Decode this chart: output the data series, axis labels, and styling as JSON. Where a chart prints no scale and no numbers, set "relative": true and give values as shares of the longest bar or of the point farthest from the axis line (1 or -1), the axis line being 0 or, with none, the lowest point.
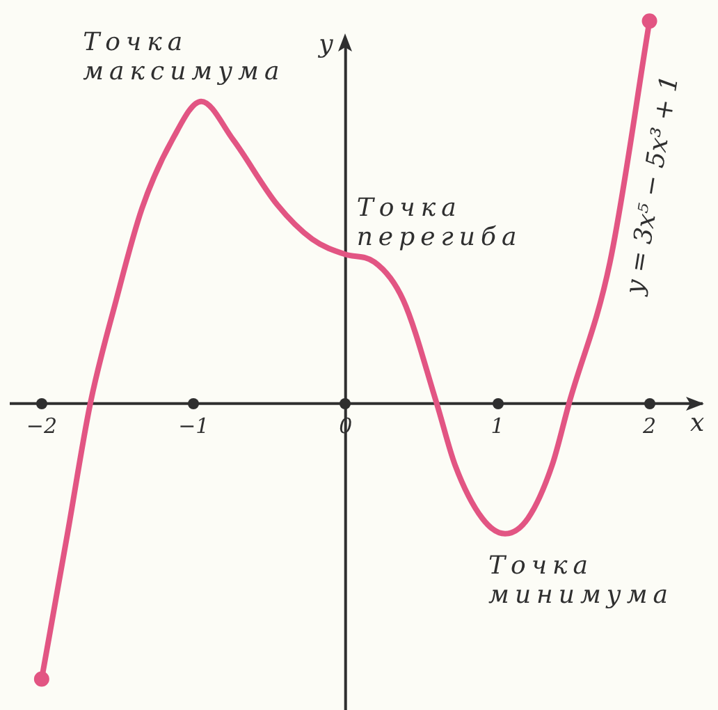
{
  "chart_data": {
    "type": "line",
    "relative": true,
    "xlabel": "x",
    "ylabel": "y",
    "marker": "none",
    "xlim": [
      -2.21,
      2.35
    ],
    "xticks": [
      {
        "value": -2,
        "label": "−2"
      },
      {
        "value": -1,
        "label": "−1"
      },
      0,
      1,
      2
    ],
    "series": [
      {
        "name": "y = 3x⁵ − 5x³ + 1",
        "color": "#e25583",
        "x": [
          -2,
          -1.83,
          -1.68,
          -1.51,
          -1.34,
          -1.14,
          -0.95,
          -0.74,
          -0.45,
          -0.22,
          0,
          0.19,
          0.38,
          0.6,
          0.72,
          0.9,
          1.05,
          1.2,
          1.36,
          1.47,
          1.74,
          2
        ],
        "values": [
          -0.72,
          -0.34,
          0,
          0.27,
          0.51,
          0.69,
          0.79,
          0.69,
          0.52,
          0.43,
          0.39,
          0.37,
          0.27,
          0,
          -0.16,
          -0.3,
          -0.34,
          -0.3,
          -0.16,
          0,
          0.37,
          1
        ]
      },
      {
        "type": "scatter",
        "marker": "circle",
        "color": "#e25583",
        "x": [
          -2,
          2
        ],
        "values": [
          -0.72,
          1
        ]
      }
    ],
    "annotations": [
      {
        "text": "Точка максимума",
        "x": -0.95,
        "y": 0.79
      },
      {
        "text": "Точка перегиба",
        "x": 0,
        "y": 0.39
      },
      {
        "text": "Точка минимума",
        "x": 1.05,
        "y": -0.34
      }
    ]
  }
}
